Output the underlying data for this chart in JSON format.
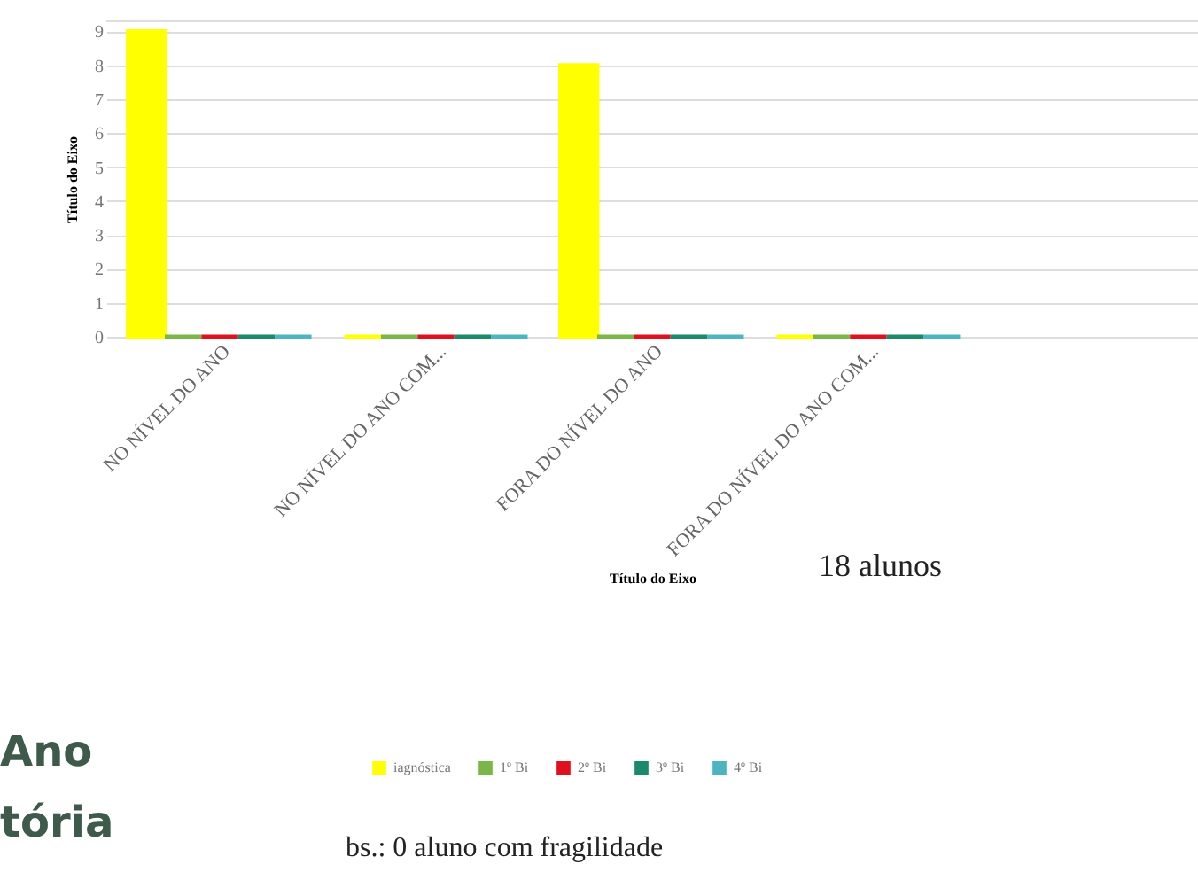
{
  "chart_data": {
    "type": "bar",
    "xlabel": "Título do Eixo",
    "ylabel": "Título do Eixo",
    "categories": [
      "NO NÍVEL DO ANO",
      "NO NÍVEL DO ANO COM...",
      "FORA DO NÍVEL DO ANO",
      "FORA DO NÍVEL DO ANO COM...",
      null
    ],
    "series": [
      {
        "name": "iagnóstica",
        "color": "#ffff00",
        "values": [
          9,
          0,
          8,
          0,
          null
        ]
      },
      {
        "name": "1º Bi",
        "color": "#7ab648",
        "values": [
          0,
          0,
          0,
          0,
          null
        ]
      },
      {
        "name": "2º Bi",
        "color": "#e0101e",
        "values": [
          0,
          0,
          0,
          0,
          null
        ]
      },
      {
        "name": "3º Bi",
        "color": "#1a8a6a",
        "values": [
          0,
          0,
          0,
          0,
          null
        ]
      },
      {
        "name": "4º Bi",
        "color": "#4bb5c1",
        "values": [
          0,
          0,
          0,
          0,
          null
        ]
      }
    ],
    "ylim": [
      0,
      9.3
    ],
    "yticks": [
      0,
      1,
      2,
      3,
      4,
      5,
      6,
      7,
      8,
      9
    ],
    "grid": "y",
    "legend": "bottom",
    "annotations": [
      "18 alunos",
      "bs.: 0 aluno com fragilidade",
      "Ano",
      "tória"
    ]
  }
}
